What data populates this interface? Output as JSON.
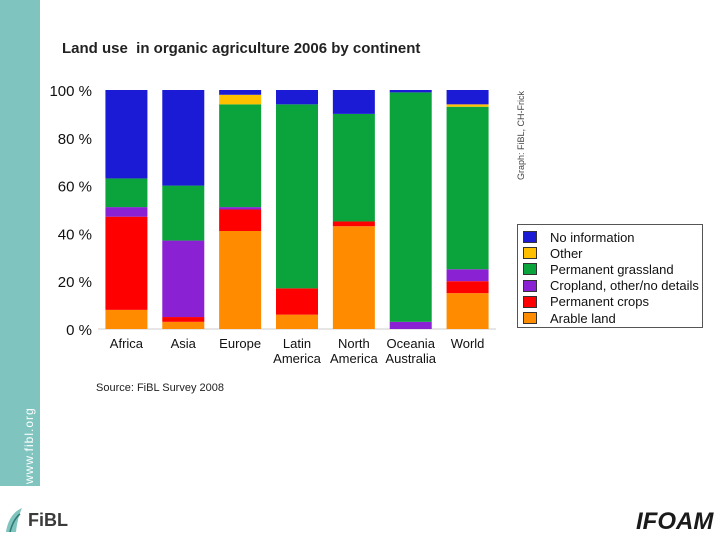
{
  "site_url": "www.fibl.org",
  "credit": "Graph: FiBL, CH-Frick",
  "source_note": "Source: FiBL Survey 2008",
  "logos": {
    "fibl": "FiBL",
    "ifoam": "IFOAM"
  },
  "colors": {
    "sidebar": "#7fc4be",
    "no_information": "#1b1bd6",
    "other": "#ffc000",
    "permanent_grassland": "#0aa33c",
    "cropland_other": "#8a22d4",
    "permanent_crops": "#ff0000",
    "arable_land": "#ff8c00"
  },
  "chart_data": {
    "type": "bar",
    "stacked": true,
    "title": "Land use  in organic agriculture 2006 by continent",
    "xlabel": "",
    "ylabel": "",
    "ylim": [
      0,
      100
    ],
    "yticks": [
      0,
      20,
      40,
      60,
      80,
      100
    ],
    "ytick_suffix": " %",
    "categories": [
      [
        "Africa"
      ],
      [
        "Asia"
      ],
      [
        "Europe"
      ],
      [
        "Latin",
        "America"
      ],
      [
        "North",
        "America"
      ],
      [
        "Oceania",
        "Australia"
      ],
      [
        "World"
      ]
    ],
    "legend_position": "right",
    "series": [
      {
        "name": "Arable land",
        "color": "#ff8c00",
        "values": [
          8,
          3,
          41,
          6,
          43,
          0,
          15
        ]
      },
      {
        "name": "Permanent crops",
        "color": "#ff0000",
        "values": [
          39,
          2,
          9,
          11,
          2,
          0,
          5
        ]
      },
      {
        "name": "Cropland, other/no details",
        "color": "#8a22d4",
        "values": [
          4,
          32,
          1,
          0,
          0,
          3,
          5
        ]
      },
      {
        "name": "Permanent grassland",
        "color": "#0aa33c",
        "values": [
          12,
          23,
          43,
          77,
          45,
          96,
          68
        ]
      },
      {
        "name": "Other",
        "color": "#ffc000",
        "values": [
          0,
          0,
          4,
          0,
          0,
          0,
          1
        ]
      },
      {
        "name": "No information",
        "color": "#1b1bd6",
        "values": [
          37,
          40,
          2,
          6,
          10,
          1,
          6
        ]
      }
    ],
    "legend_order": [
      "No information",
      "Other",
      "Permanent grassland",
      "Cropland, other/no details",
      "Permanent crops",
      "Arable land"
    ]
  }
}
